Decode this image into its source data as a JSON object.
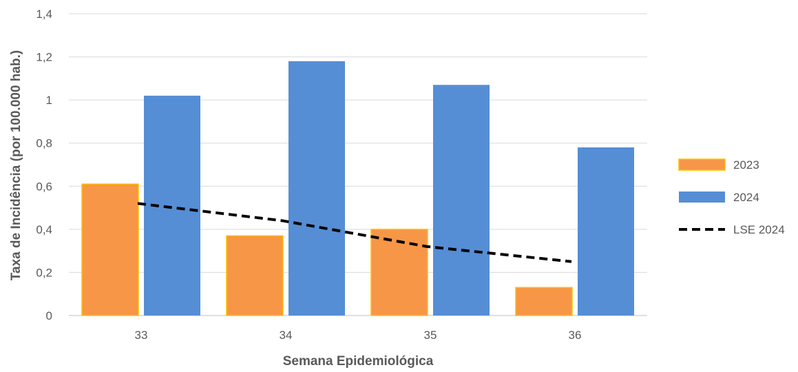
{
  "chart_data": {
    "type": "bar",
    "categories": [
      "33",
      "34",
      "35",
      "36"
    ],
    "series": [
      {
        "name": "2023",
        "values": [
          0.61,
          0.37,
          0.4,
          0.13
        ],
        "color": "#F79646",
        "border": "#FFC000"
      },
      {
        "name": "2024",
        "values": [
          1.02,
          1.18,
          1.07,
          0.78
        ],
        "color": "#558ED5"
      }
    ],
    "line": {
      "name": "LSE 2024",
      "values": [
        0.52,
        0.44,
        0.32,
        0.25
      ],
      "color": "#000000",
      "style": "dashed"
    },
    "xlabel": "Semana Epidemiológica",
    "ylabel": "Taxa de Incidência (por 100.000 hab.)",
    "ylim": [
      0,
      1.4
    ],
    "yticks": [
      "0",
      "0,2",
      "0,4",
      "0,6",
      "0,8",
      "1",
      "1,2",
      "1,4"
    ],
    "grid": true,
    "legend_position": "right"
  }
}
